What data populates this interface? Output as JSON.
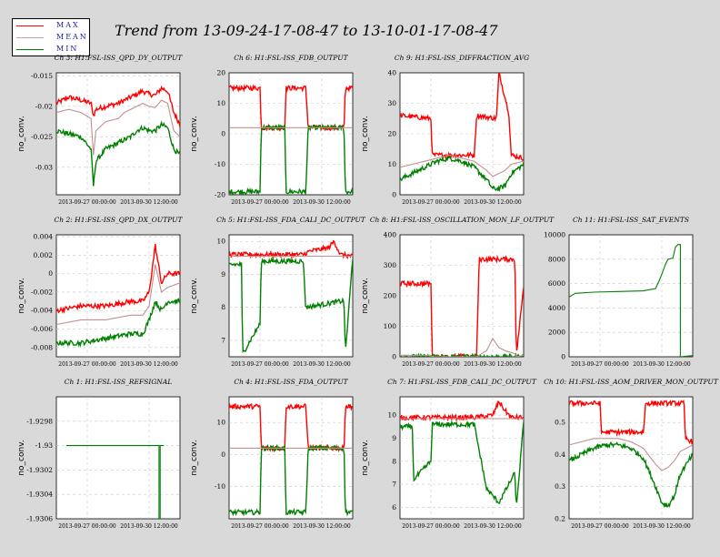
{
  "title": "Trend from 13-09-24-17-08-47 to 13-10-01-17-08-47",
  "legend": [
    {
      "label": "MAX",
      "color": "#ff0000"
    },
    {
      "label": "MEAN",
      "color": "#c8a0a0"
    },
    {
      "label": "MIN",
      "color": "#008000"
    }
  ],
  "colors": {
    "max": "#ff0000",
    "mean": "#c09090",
    "min": "#008000",
    "background": "#d9d9d9",
    "grid": "#c8c8c8"
  },
  "chart_data": [
    {
      "type": "line",
      "title": "Ch 3: H1:FSL-ISS_QPD_DY_OUTPUT",
      "ylabel": "no_conv.",
      "ylim": [
        -0.0345,
        -0.0145
      ],
      "yticks": [
        "-0.015",
        "-0.02",
        "-0.025",
        "-0.03"
      ],
      "ytick_values": [
        -0.015,
        -0.02,
        -0.025,
        -0.03
      ],
      "xticks": [
        "2013-09-27 00:00:00",
        "2013-09-30 12:00:00"
      ],
      "xtick_pos": [
        0.25,
        0.75
      ],
      "series": [
        {
          "role": "max",
          "x": [
            0,
            0.1,
            0.2,
            0.28,
            0.3,
            0.32,
            0.4,
            0.5,
            0.55,
            0.6,
            0.65,
            0.7,
            0.75,
            0.8,
            0.85,
            0.9,
            0.95,
            1
          ],
          "values": [
            -0.0195,
            -0.0185,
            -0.019,
            -0.0195,
            -0.0215,
            -0.0205,
            -0.02,
            -0.0195,
            -0.019,
            -0.0185,
            -0.018,
            -0.0175,
            -0.018,
            -0.0182,
            -0.017,
            -0.0175,
            -0.021,
            -0.023
          ]
        },
        {
          "role": "mean",
          "x": [
            0,
            0.1,
            0.2,
            0.28,
            0.3,
            0.32,
            0.4,
            0.5,
            0.55,
            0.6,
            0.65,
            0.7,
            0.75,
            0.8,
            0.85,
            0.9,
            0.95,
            1
          ],
          "values": [
            -0.021,
            -0.0205,
            -0.021,
            -0.022,
            -0.028,
            -0.024,
            -0.0225,
            -0.022,
            -0.021,
            -0.0205,
            -0.02,
            -0.0195,
            -0.02,
            -0.0202,
            -0.019,
            -0.0195,
            -0.024,
            -0.025
          ]
        },
        {
          "role": "min",
          "x": [
            0,
            0.1,
            0.2,
            0.28,
            0.3,
            0.32,
            0.4,
            0.5,
            0.55,
            0.6,
            0.65,
            0.7,
            0.75,
            0.8,
            0.85,
            0.9,
            0.95,
            1
          ],
          "values": [
            -0.024,
            -0.0245,
            -0.025,
            -0.027,
            -0.033,
            -0.029,
            -0.027,
            -0.026,
            -0.0255,
            -0.025,
            -0.024,
            -0.0235,
            -0.024,
            -0.024,
            -0.023,
            -0.0235,
            -0.027,
            -0.028
          ]
        }
      ]
    },
    {
      "type": "line",
      "title": "Ch 6: H1:FSL-ISS_FDB_OUTPUT",
      "ylabel": "no_conv.",
      "ylim": [
        -20,
        20
      ],
      "yticks": [
        "20",
        "10",
        "0",
        "-10",
        "-20"
      ],
      "ytick_values": [
        20,
        10,
        0,
        -10,
        -20
      ],
      "xticks": [
        "2013-09-27 00:00:00",
        "2013-09-30 12:00:00"
      ],
      "xtick_pos": [
        0.25,
        0.75
      ],
      "series": [
        {
          "role": "max",
          "x": [
            0,
            0.25,
            0.26,
            0.45,
            0.46,
            0.62,
            0.64,
            0.93,
            0.94,
            1
          ],
          "values": [
            15,
            15,
            2,
            2,
            15,
            15,
            2,
            2,
            15,
            15
          ]
        },
        {
          "role": "mean",
          "x": [
            0,
            1
          ],
          "values": [
            2,
            2
          ]
        },
        {
          "role": "min",
          "x": [
            0,
            0.25,
            0.26,
            0.45,
            0.46,
            0.62,
            0.64,
            0.93,
            0.94,
            1
          ],
          "values": [
            -19,
            -19,
            2,
            2,
            -19,
            -19,
            2,
            2,
            -19,
            -19
          ]
        }
      ]
    },
    {
      "type": "line",
      "title": "Ch 9: H1:FSL-ISS_DIFFRACTION_AVG",
      "ylabel": "no_conv.",
      "ylim": [
        0,
        40
      ],
      "yticks": [
        "40",
        "30",
        "20",
        "10",
        "0"
      ],
      "ytick_values": [
        40,
        30,
        20,
        10,
        0
      ],
      "xticks": [
        "2013-09-27 00:00:00",
        "2013-09-30 12:00:00"
      ],
      "xtick_pos": [
        0.25,
        0.75
      ],
      "series": [
        {
          "role": "max",
          "x": [
            0,
            0.25,
            0.26,
            0.6,
            0.62,
            0.78,
            0.8,
            0.88,
            0.9,
            1
          ],
          "values": [
            26,
            25,
            13,
            13,
            26,
            25,
            40,
            27,
            13,
            12
          ]
        },
        {
          "role": "mean",
          "x": [
            0,
            0.1,
            0.2,
            0.3,
            0.4,
            0.5,
            0.6,
            0.7,
            0.75,
            0.8,
            0.85,
            0.9,
            1
          ],
          "values": [
            9,
            10,
            11,
            12,
            13,
            12,
            11,
            8,
            6,
            7,
            8,
            10,
            11
          ]
        },
        {
          "role": "min",
          "x": [
            0,
            0.1,
            0.2,
            0.3,
            0.4,
            0.5,
            0.6,
            0.7,
            0.75,
            0.8,
            0.85,
            0.9,
            1
          ],
          "values": [
            5,
            7,
            9,
            11,
            12,
            11,
            9,
            5,
            2,
            2,
            3,
            7,
            10
          ]
        }
      ]
    },
    {
      "type": "line",
      "title": "Ch 2: H1:FSL-ISS_QPD_DX_OUTPUT",
      "ylabel": "no_conv.",
      "ylim": [
        -0.009,
        0.0042
      ],
      "yticks": [
        "0.004",
        "0.002",
        "0",
        "-0.002",
        "-0.004",
        "-0.006",
        "-0.008"
      ],
      "ytick_values": [
        0.004,
        0.002,
        0,
        -0.002,
        -0.004,
        -0.006,
        -0.008
      ],
      "xticks": [
        "2013-09-27 00:00:00",
        "2013-09-30 12:00:00"
      ],
      "xtick_pos": [
        0.25,
        0.75
      ],
      "series": [
        {
          "role": "max",
          "x": [
            0,
            0.2,
            0.4,
            0.6,
            0.7,
            0.75,
            0.8,
            0.85,
            0.9,
            1
          ],
          "values": [
            -0.004,
            -0.0035,
            -0.0035,
            -0.003,
            -0.003,
            -0.002,
            0.003,
            -0.001,
            0,
            0
          ]
        },
        {
          "role": "mean",
          "x": [
            0,
            0.2,
            0.4,
            0.6,
            0.7,
            0.75,
            0.8,
            0.85,
            0.9,
            1
          ],
          "values": [
            -0.0055,
            -0.005,
            -0.005,
            -0.0045,
            -0.0045,
            -0.0035,
            0.001,
            -0.002,
            -0.0015,
            -0.001
          ]
        },
        {
          "role": "min",
          "x": [
            0,
            0.2,
            0.4,
            0.6,
            0.7,
            0.75,
            0.8,
            0.85,
            0.9,
            1
          ],
          "values": [
            -0.0075,
            -0.0075,
            -0.007,
            -0.0065,
            -0.0065,
            -0.005,
            -0.003,
            -0.004,
            -0.003,
            -0.003
          ]
        }
      ]
    },
    {
      "type": "line",
      "title": "Ch 5: H1:FSL-ISS_FDA_CALI_DC_OUTPUT",
      "ylabel": "no_conv.",
      "ylim": [
        6.5,
        10.2
      ],
      "yticks": [
        "10",
        "9",
        "8",
        "7"
      ],
      "ytick_values": [
        10,
        9,
        8,
        7
      ],
      "xticks": [
        "2013-09-27 00:00:00",
        "2013-09-30 12:00:00"
      ],
      "xtick_pos": [
        0.25,
        0.75
      ],
      "series": [
        {
          "role": "max",
          "x": [
            0,
            0.6,
            0.65,
            0.8,
            0.85,
            0.9,
            1
          ],
          "values": [
            9.6,
            9.6,
            9.7,
            9.8,
            10.0,
            9.6,
            9.55
          ]
        },
        {
          "role": "mean",
          "x": [
            0,
            1
          ],
          "values": [
            9.55,
            9.55
          ]
        },
        {
          "role": "min",
          "x": [
            0,
            0.1,
            0.11,
            0.25,
            0.26,
            0.6,
            0.62,
            0.93,
            0.94,
            1
          ],
          "values": [
            9.3,
            9.3,
            6.6,
            7.5,
            9.4,
            9.4,
            8.0,
            8.2,
            6.6,
            9.5
          ]
        }
      ]
    },
    {
      "type": "line",
      "title": "Ch 8: H1:FSL-ISS_OSCILLATION_MON_LF_OUTPUT",
      "ylabel": "no_conv.",
      "ylim": [
        0,
        400
      ],
      "yticks": [
        "400",
        "300",
        "200",
        "100",
        "0"
      ],
      "ytick_values": [
        400,
        300,
        200,
        100,
        0
      ],
      "xticks": [
        "2013-09-27 00:00:00",
        "2013-09-30 12:00:00"
      ],
      "xtick_pos": [
        0.25,
        0.75
      ],
      "series": [
        {
          "role": "max",
          "x": [
            0,
            0.25,
            0.26,
            0.62,
            0.64,
            0.93,
            0.94,
            1
          ],
          "values": [
            240,
            240,
            0,
            0,
            320,
            320,
            0,
            230
          ]
        },
        {
          "role": "mean",
          "x": [
            0,
            0.25,
            0.26,
            0.62,
            0.7,
            0.75,
            0.8,
            0.85,
            0.93,
            0.94,
            1
          ],
          "values": [
            5,
            5,
            0,
            0,
            20,
            60,
            30,
            20,
            10,
            0,
            5
          ]
        },
        {
          "role": "min",
          "x": [
            0,
            1
          ],
          "values": [
            0,
            0
          ]
        }
      ]
    },
    {
      "type": "line",
      "title": "Ch 11: H1:FSL-ISS_SAT_EVENTS",
      "ylabel": "",
      "ylim": [
        0,
        10000
      ],
      "yticks": [
        "10000",
        "8000",
        "6000",
        "4000",
        "2000",
        "0"
      ],
      "ytick_values": [
        10000,
        8000,
        6000,
        4000,
        2000,
        0
      ],
      "xticks": [
        "2013-09-27 00:00:00",
        "2013-09-30 12:00:00"
      ],
      "xtick_pos": [
        0.25,
        0.75
      ],
      "series": [
        {
          "role": "min",
          "x": [
            0,
            0.05,
            0.2,
            0.4,
            0.6,
            0.7,
            0.74,
            0.78,
            0.8,
            0.84,
            0.86,
            0.88,
            0.9,
            0.9,
            1
          ],
          "values": [
            4900,
            5200,
            5300,
            5350,
            5400,
            5600,
            6500,
            7600,
            8000,
            8100,
            9000,
            9200,
            9200,
            0,
            100
          ]
        }
      ]
    },
    {
      "type": "line",
      "title": "Ch 1: H1:FSL-ISS_REFSIGNAL",
      "ylabel": "no_conv.",
      "ylim": [
        -1.9306,
        -1.9296
      ],
      "yticks": [
        "-1.9298",
        "-1.93",
        "-1.9302",
        "-1.9304",
        "-1.9306"
      ],
      "ytick_values": [
        -1.9298,
        -1.93,
        -1.9302,
        -1.9304,
        -1.9306
      ],
      "xticks": [
        "2013-09-27 00:00:00",
        "2013-09-30 12:00:00"
      ],
      "xtick_pos": [
        0.25,
        0.75
      ],
      "series": [
        {
          "role": "min",
          "x": [
            0.08,
            0.83,
            0.83,
            0.84,
            0.84,
            0.87
          ],
          "values": [
            -1.93,
            -1.93,
            -1.9306,
            -1.9306,
            -1.93,
            -1.93
          ]
        }
      ]
    },
    {
      "type": "line",
      "title": "Ch 4: H1:FSL-ISS_FDA_OUTPUT",
      "ylabel": "no_conv.",
      "ylim": [
        -20,
        18
      ],
      "yticks": [
        "10",
        "0",
        "-10"
      ],
      "ytick_values": [
        10,
        0,
        -10
      ],
      "xticks": [
        "2013-09-27 00:00:00",
        "2013-09-30 12:00:00"
      ],
      "xtick_pos": [
        0.25,
        0.75
      ],
      "series": [
        {
          "role": "max",
          "x": [
            0,
            0.25,
            0.26,
            0.45,
            0.46,
            0.62,
            0.64,
            0.93,
            0.94,
            1
          ],
          "values": [
            15,
            15,
            2,
            2,
            15,
            15,
            2,
            2,
            15,
            15
          ]
        },
        {
          "role": "mean",
          "x": [
            0,
            1
          ],
          "values": [
            2,
            2
          ]
        },
        {
          "role": "min",
          "x": [
            0,
            0.25,
            0.26,
            0.45,
            0.46,
            0.62,
            0.64,
            0.93,
            0.94,
            1
          ],
          "values": [
            -18,
            -18,
            2,
            2,
            -18,
            -18,
            2,
            2,
            -18,
            -18
          ]
        }
      ]
    },
    {
      "type": "line",
      "title": "Ch 7: H1:FSL-ISS_FDB_CALI_DC_OUTPUT",
      "ylabel": "no_conv.",
      "ylim": [
        5.5,
        10.8
      ],
      "yticks": [
        "10",
        "9",
        "8",
        "7",
        "6"
      ],
      "ytick_values": [
        10,
        9,
        8,
        7,
        6
      ],
      "xticks": [
        "2013-09-27 00:00:00",
        "2013-09-30 12:00:00"
      ],
      "xtick_pos": [
        0.25,
        0.75
      ],
      "series": [
        {
          "role": "max",
          "x": [
            0,
            0.6,
            0.75,
            0.8,
            0.85,
            0.9,
            1
          ],
          "values": [
            9.9,
            9.9,
            10.0,
            10.6,
            10.2,
            9.9,
            9.9
          ]
        },
        {
          "role": "mean",
          "x": [
            0,
            1
          ],
          "values": [
            9.85,
            9.85
          ]
        },
        {
          "role": "min",
          "x": [
            0,
            0.1,
            0.11,
            0.25,
            0.26,
            0.6,
            0.7,
            0.8,
            0.93,
            0.94,
            1
          ],
          "values": [
            9.5,
            9.5,
            7.2,
            8.0,
            9.6,
            9.6,
            6.8,
            6.2,
            7.5,
            5.9,
            9.7
          ]
        }
      ]
    },
    {
      "type": "line",
      "title": "Ch 10: H1:FSL-ISS_AOM_DRIVER_MON_OUTPUT",
      "ylabel": "",
      "ylim": [
        0.2,
        0.58
      ],
      "yticks": [
        "0.5",
        "0.4",
        "0.3",
        "0.2"
      ],
      "ytick_values": [
        0.5,
        0.4,
        0.3,
        0.2
      ],
      "xticks": [
        "2013-09-27 00:00:00",
        "2013-09-30 12:00:00"
      ],
      "xtick_pos": [
        0.25,
        0.75
      ],
      "series": [
        {
          "role": "max",
          "x": [
            0,
            0.25,
            0.26,
            0.6,
            0.62,
            0.93,
            0.94,
            1
          ],
          "values": [
            0.56,
            0.56,
            0.47,
            0.47,
            0.56,
            0.56,
            0.45,
            0.44
          ]
        },
        {
          "role": "mean",
          "x": [
            0,
            0.1,
            0.2,
            0.3,
            0.4,
            0.5,
            0.6,
            0.7,
            0.75,
            0.8,
            0.85,
            0.9,
            1
          ],
          "values": [
            0.43,
            0.44,
            0.45,
            0.45,
            0.45,
            0.44,
            0.42,
            0.37,
            0.35,
            0.36,
            0.38,
            0.41,
            0.43
          ]
        },
        {
          "role": "min",
          "x": [
            0,
            0.1,
            0.2,
            0.3,
            0.4,
            0.5,
            0.6,
            0.7,
            0.75,
            0.8,
            0.85,
            0.9,
            1
          ],
          "values": [
            0.38,
            0.4,
            0.42,
            0.43,
            0.43,
            0.42,
            0.39,
            0.3,
            0.25,
            0.24,
            0.27,
            0.34,
            0.4
          ]
        }
      ]
    }
  ]
}
